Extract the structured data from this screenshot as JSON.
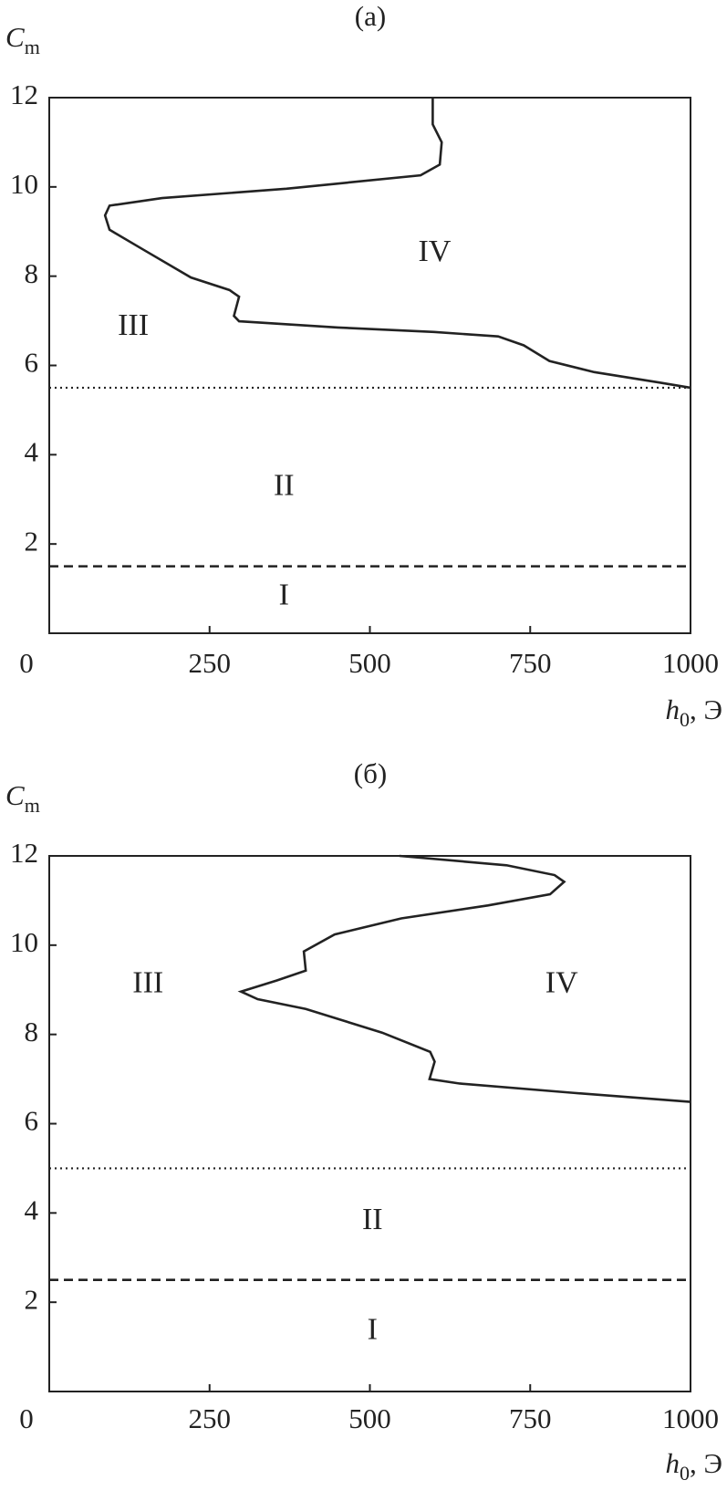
{
  "chart_data": [
    {
      "type": "line",
      "title": "(a)",
      "ylabel": {
        "main": "C",
        "sub": "m"
      },
      "xlabel": {
        "main": "h",
        "sub": "0",
        "unit": ", Э"
      },
      "xlim": [
        0,
        1000
      ],
      "ylim": [
        0,
        12
      ],
      "xticks": [
        0,
        250,
        500,
        750,
        1000
      ],
      "yticks": [
        2,
        4,
        6,
        8,
        10,
        12
      ],
      "series": [
        {
          "color": "#222222",
          "x": [
            598,
            598,
            612,
            609,
            579,
            370,
            176,
            94,
            87,
            94,
            146,
            221,
            281,
            296,
            288,
            296,
            450,
            600,
            700,
            740,
            780,
            850,
            950,
            1000
          ],
          "values": [
            12,
            11.4,
            11.0,
            10.5,
            10.26,
            9.96,
            9.75,
            9.58,
            9.36,
            9.04,
            8.6,
            7.97,
            7.69,
            7.54,
            7.11,
            6.99,
            6.85,
            6.75,
            6.65,
            6.45,
            6.1,
            5.85,
            5.62,
            5.5
          ]
        }
      ],
      "hlines": [
        {
          "value": 5.5,
          "style": "dotted"
        },
        {
          "value": 1.5,
          "style": "dashed"
        }
      ],
      "annotations": [
        {
          "text": "IV",
          "x": 601,
          "y": 8.5
        },
        {
          "text": "III",
          "x": 131,
          "y": 6.84
        },
        {
          "text": "II",
          "x": 366,
          "y": 3.26
        },
        {
          "text": "I",
          "x": 366,
          "y": 0.8
        }
      ]
    },
    {
      "type": "line",
      "title": "(б)",
      "ylabel": {
        "main": "C",
        "sub": "m"
      },
      "xlabel": {
        "main": "h",
        "sub": "0",
        "unit": ", Э"
      },
      "xlim": [
        0,
        1000
      ],
      "ylim": [
        0,
        12
      ],
      "xticks": [
        0,
        250,
        500,
        750,
        1000
      ],
      "yticks": [
        2,
        4,
        6,
        8,
        10,
        12
      ],
      "series": [
        {
          "color": "#222222",
          "x": [
            546,
            713,
            788,
            803,
            781,
            684,
            549,
            445,
            397,
            400,
            355,
            299,
            325,
            400,
            519,
            594,
            601,
            593,
            640,
            818,
            1000
          ],
          "values": [
            12,
            11.79,
            11.57,
            11.42,
            11.14,
            10.89,
            10.6,
            10.24,
            9.86,
            9.43,
            9.21,
            8.96,
            8.79,
            8.57,
            8.04,
            7.61,
            7.39,
            7.0,
            6.9,
            6.69,
            6.49
          ]
        }
      ],
      "hlines": [
        {
          "value": 5.0,
          "style": "dotted"
        },
        {
          "value": 2.5,
          "style": "dashed"
        }
      ],
      "annotations": [
        {
          "text": "III",
          "x": 154,
          "y": 9.1
        },
        {
          "text": "IV",
          "x": 799,
          "y": 9.1
        },
        {
          "text": "II",
          "x": 504,
          "y": 3.8
        },
        {
          "text": "I",
          "x": 504,
          "y": 1.33
        }
      ]
    }
  ]
}
